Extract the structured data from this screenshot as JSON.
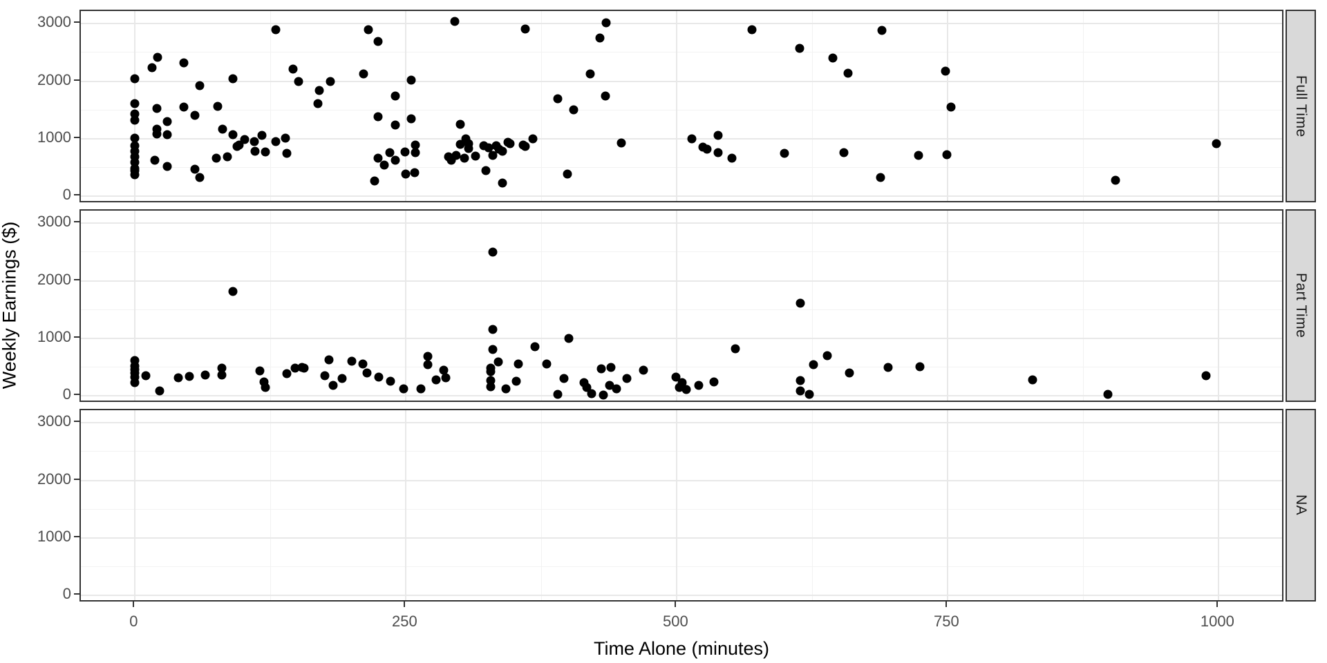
{
  "chart_data": {
    "type": "scatter",
    "title": "",
    "xlabel": "Time Alone (minutes)",
    "ylabel": "Weekly Earnings ($)",
    "x_ticks": [
      0,
      250,
      500,
      750,
      1000
    ],
    "x_minor_gridlines": [
      125,
      375,
      625,
      875
    ],
    "y_ticks": [
      0,
      1000,
      2000,
      3000
    ],
    "y_minor_gridlines": [
      500,
      1500,
      2500
    ],
    "xlim": [
      -50,
      1061
    ],
    "ylim": [
      -132,
      3220
    ],
    "grid": "on",
    "legend": "none",
    "point_color": "#000000",
    "strip_background": "#d9d9d9",
    "facets": [
      {
        "label": "Full Time",
        "points": [
          [
            0,
            2040
          ],
          [
            0,
            1615
          ],
          [
            0,
            1425
          ],
          [
            0,
            1320
          ],
          [
            0,
            1015
          ],
          [
            0,
            880
          ],
          [
            0,
            785
          ],
          [
            0,
            685
          ],
          [
            0,
            585
          ],
          [
            0,
            485
          ],
          [
            0,
            440
          ],
          [
            0,
            375
          ],
          [
            16,
            2230
          ],
          [
            21,
            2420
          ],
          [
            45,
            2320
          ],
          [
            60,
            1920
          ],
          [
            90,
            2040
          ],
          [
            130,
            2895
          ],
          [
            146,
            2210
          ],
          [
            151,
            1990
          ],
          [
            169,
            1605
          ],
          [
            170,
            1840
          ],
          [
            180,
            1990
          ],
          [
            211,
            2130
          ],
          [
            215,
            2895
          ],
          [
            224,
            2690
          ],
          [
            240,
            1745
          ],
          [
            255,
            2015
          ],
          [
            20,
            1520
          ],
          [
            20,
            1170
          ],
          [
            20,
            1085
          ],
          [
            30,
            1300
          ],
          [
            30,
            1070
          ],
          [
            45,
            1545
          ],
          [
            55,
            1405
          ],
          [
            76,
            1560
          ],
          [
            81,
            1160
          ],
          [
            90,
            1065
          ],
          [
            96,
            885
          ],
          [
            101,
            985
          ],
          [
            110,
            955
          ],
          [
            111,
            785
          ],
          [
            117,
            1060
          ],
          [
            120,
            765
          ],
          [
            130,
            945
          ],
          [
            139,
            1005
          ],
          [
            140,
            745
          ],
          [
            224,
            1380
          ],
          [
            240,
            1240
          ],
          [
            255,
            1345
          ],
          [
            18,
            620
          ],
          [
            30,
            515
          ],
          [
            55,
            470
          ],
          [
            60,
            330
          ],
          [
            75,
            660
          ],
          [
            85,
            690
          ],
          [
            94,
            860
          ],
          [
            221,
            260
          ],
          [
            224,
            655
          ],
          [
            230,
            540
          ],
          [
            235,
            755
          ],
          [
            240,
            620
          ],
          [
            249,
            775
          ],
          [
            250,
            390
          ],
          [
            258,
            410
          ],
          [
            259,
            890
          ],
          [
            259,
            755
          ],
          [
            289,
            685
          ],
          [
            292,
            625
          ],
          [
            296,
            715
          ],
          [
            304,
            660
          ],
          [
            314,
            700
          ],
          [
            324,
            450
          ],
          [
            330,
            705
          ],
          [
            339,
            225
          ],
          [
            300,
            1250
          ],
          [
            300,
            905
          ],
          [
            305,
            995
          ],
          [
            308,
            915
          ],
          [
            308,
            825
          ],
          [
            322,
            875
          ],
          [
            326,
            845
          ],
          [
            333,
            875
          ],
          [
            336,
            820
          ],
          [
            339,
            780
          ],
          [
            344,
            940
          ],
          [
            346,
            915
          ],
          [
            358,
            885
          ],
          [
            360,
            860
          ],
          [
            367,
            1000
          ],
          [
            295,
            3040
          ],
          [
            360,
            2905
          ],
          [
            390,
            1695
          ],
          [
            399,
            385
          ],
          [
            405,
            1500
          ],
          [
            420,
            2125
          ],
          [
            429,
            2755
          ],
          [
            434,
            1740
          ],
          [
            435,
            3020
          ],
          [
            449,
            920
          ],
          [
            514,
            1000
          ],
          [
            524,
            855
          ],
          [
            528,
            815
          ],
          [
            538,
            1055
          ],
          [
            538,
            760
          ],
          [
            551,
            665
          ],
          [
            569,
            2890
          ],
          [
            599,
            745
          ],
          [
            613,
            2570
          ],
          [
            644,
            2405
          ],
          [
            654,
            760
          ],
          [
            658,
            2135
          ],
          [
            688,
            320
          ],
          [
            689,
            2885
          ],
          [
            723,
            715
          ],
          [
            748,
            2175
          ],
          [
            749,
            725
          ],
          [
            753,
            1545
          ],
          [
            905,
            280
          ],
          [
            998,
            915
          ]
        ]
      },
      {
        "label": "Part Time",
        "points": [
          [
            0,
            610
          ],
          [
            0,
            520
          ],
          [
            0,
            460
          ],
          [
            0,
            395
          ],
          [
            0,
            330
          ],
          [
            0,
            230
          ],
          [
            10,
            345
          ],
          [
            23,
            90
          ],
          [
            40,
            315
          ],
          [
            50,
            340
          ],
          [
            65,
            355
          ],
          [
            80,
            475
          ],
          [
            80,
            365
          ],
          [
            90,
            1815
          ],
          [
            115,
            430
          ],
          [
            119,
            235
          ],
          [
            120,
            145
          ],
          [
            140,
            385
          ],
          [
            148,
            475
          ],
          [
            154,
            495
          ],
          [
            156,
            485
          ],
          [
            175,
            345
          ],
          [
            179,
            630
          ],
          [
            183,
            185
          ],
          [
            191,
            305
          ],
          [
            200,
            605
          ],
          [
            210,
            550
          ],
          [
            214,
            395
          ],
          [
            225,
            325
          ],
          [
            236,
            255
          ],
          [
            248,
            115
          ],
          [
            264,
            115
          ],
          [
            270,
            685
          ],
          [
            270,
            545
          ],
          [
            278,
            280
          ],
          [
            285,
            445
          ],
          [
            287,
            310
          ],
          [
            330,
            2500
          ],
          [
            330,
            1150
          ],
          [
            330,
            810
          ],
          [
            328,
            475
          ],
          [
            328,
            420
          ],
          [
            328,
            270
          ],
          [
            328,
            160
          ],
          [
            335,
            590
          ],
          [
            342,
            120
          ],
          [
            352,
            255
          ],
          [
            354,
            555
          ],
          [
            369,
            850
          ],
          [
            380,
            555
          ],
          [
            390,
            30
          ],
          [
            396,
            295
          ],
          [
            400,
            1000
          ],
          [
            414,
            230
          ],
          [
            417,
            150
          ],
          [
            421,
            35
          ],
          [
            430,
            470
          ],
          [
            432,
            10
          ],
          [
            438,
            175
          ],
          [
            439,
            495
          ],
          [
            444,
            115
          ],
          [
            454,
            305
          ],
          [
            469,
            445
          ],
          [
            499,
            325
          ],
          [
            502,
            150
          ],
          [
            505,
            225
          ],
          [
            509,
            110
          ],
          [
            520,
            185
          ],
          [
            534,
            235
          ],
          [
            554,
            820
          ],
          [
            614,
            1615
          ],
          [
            614,
            270
          ],
          [
            614,
            90
          ],
          [
            622,
            20
          ],
          [
            626,
            545
          ],
          [
            639,
            700
          ],
          [
            659,
            400
          ],
          [
            695,
            490
          ],
          [
            724,
            500
          ],
          [
            828,
            280
          ],
          [
            898,
            30
          ],
          [
            988,
            345
          ]
        ]
      },
      {
        "label": "NA",
        "points": []
      }
    ]
  }
}
